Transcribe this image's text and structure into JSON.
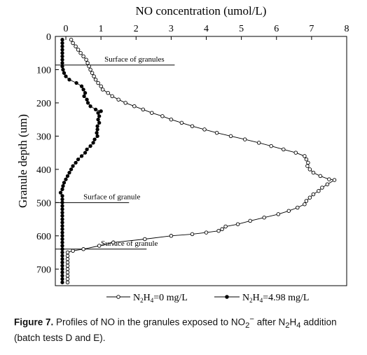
{
  "chart_data": {
    "type": "line",
    "title": "",
    "xlabel": "NO concentration (umol/L)",
    "ylabel": "Granule depth (um)",
    "x_axis_position": "top",
    "y_axis_inverted": true,
    "xlim": [
      -0.3,
      8.0
    ],
    "ylim": [
      0,
      750
    ],
    "x_ticks": [
      0,
      1,
      2,
      3,
      4,
      5,
      6,
      7,
      8
    ],
    "y_ticks": [
      0,
      100,
      200,
      300,
      400,
      500,
      600,
      700
    ],
    "grid": false,
    "legend_position": "bottom",
    "legend": {
      "item1": {
        "main": "N",
        "s1": "2",
        "mid": "H",
        "s2": "4",
        "rest": "=0 mg/L"
      },
      "item2": {
        "main": "N",
        "s1": "2",
        "mid": "H",
        "s2": "4",
        "rest": "=4.98 mg/L"
      }
    },
    "annotations": [
      {
        "text": "Surface of granules",
        "depth": 86,
        "x_start": -0.3,
        "x_end": 3.1,
        "text_x": 1.1
      },
      {
        "text": "Surface of granule",
        "depth": 500,
        "x_start": -0.3,
        "x_end": 1.8,
        "text_x": 0.5
      },
      {
        "text": "Surface of granule",
        "depth": 640,
        "x_start": -0.3,
        "x_end": 2.3,
        "text_x": 1.0
      }
    ],
    "series": [
      {
        "marker": "open-circle",
        "points": [
          [
            0.15,
            10
          ],
          [
            0.2,
            20
          ],
          [
            0.28,
            30
          ],
          [
            0.35,
            40
          ],
          [
            0.42,
            50
          ],
          [
            0.5,
            60
          ],
          [
            0.58,
            70
          ],
          [
            0.62,
            80
          ],
          [
            0.66,
            90
          ],
          [
            0.7,
            100
          ],
          [
            0.75,
            110
          ],
          [
            0.8,
            120
          ],
          [
            0.85,
            130
          ],
          [
            0.92,
            140
          ],
          [
            1.0,
            150
          ],
          [
            1.05,
            160
          ],
          [
            1.2,
            170
          ],
          [
            1.32,
            180
          ],
          [
            1.5,
            190
          ],
          [
            1.7,
            200
          ],
          [
            1.95,
            210
          ],
          [
            2.2,
            220
          ],
          [
            2.45,
            230
          ],
          [
            2.75,
            240
          ],
          [
            3.0,
            250
          ],
          [
            3.3,
            260
          ],
          [
            3.6,
            270
          ],
          [
            3.95,
            280
          ],
          [
            4.3,
            290
          ],
          [
            4.7,
            300
          ],
          [
            5.1,
            310
          ],
          [
            5.5,
            320
          ],
          [
            5.85,
            330
          ],
          [
            6.2,
            340
          ],
          [
            6.55,
            350
          ],
          [
            6.8,
            360
          ],
          [
            6.85,
            370
          ],
          [
            6.9,
            380
          ],
          [
            6.88,
            390
          ],
          [
            6.95,
            400
          ],
          [
            7.05,
            410
          ],
          [
            7.25,
            420
          ],
          [
            7.5,
            430
          ],
          [
            7.65,
            432
          ],
          [
            7.45,
            445
          ],
          [
            7.3,
            455
          ],
          [
            7.2,
            465
          ],
          [
            7.05,
            475
          ],
          [
            6.95,
            485
          ],
          [
            6.85,
            495
          ],
          [
            6.8,
            505
          ],
          [
            6.6,
            515
          ],
          [
            6.35,
            525
          ],
          [
            6.05,
            535
          ],
          [
            5.65,
            545
          ],
          [
            5.25,
            555
          ],
          [
            4.9,
            565
          ],
          [
            4.55,
            572
          ],
          [
            4.45,
            580
          ],
          [
            4.35,
            585
          ],
          [
            4.0,
            590
          ],
          [
            3.6,
            595
          ],
          [
            3.0,
            600
          ],
          [
            2.25,
            610
          ],
          [
            1.35,
            620
          ],
          [
            0.95,
            630
          ],
          [
            0.5,
            640
          ],
          [
            0.2,
            645
          ],
          [
            0.05,
            650
          ],
          [
            0.05,
            660
          ],
          [
            0.05,
            670
          ],
          [
            0.05,
            680
          ],
          [
            0.05,
            690
          ],
          [
            0.05,
            700
          ],
          [
            0.05,
            710
          ],
          [
            0.05,
            720
          ],
          [
            0.05,
            730
          ],
          [
            0.05,
            740
          ]
        ]
      },
      {
        "marker": "filled-circle",
        "points": [
          [
            -0.1,
            10
          ],
          [
            -0.1,
            20
          ],
          [
            -0.1,
            30
          ],
          [
            -0.1,
            40
          ],
          [
            -0.1,
            50
          ],
          [
            -0.1,
            60
          ],
          [
            -0.1,
            70
          ],
          [
            -0.1,
            80
          ],
          [
            -0.1,
            90
          ],
          [
            -0.08,
            100
          ],
          [
            -0.05,
            110
          ],
          [
            0.0,
            120
          ],
          [
            0.1,
            130
          ],
          [
            0.3,
            140
          ],
          [
            0.45,
            150
          ],
          [
            0.5,
            160
          ],
          [
            0.55,
            170
          ],
          [
            0.52,
            180
          ],
          [
            0.6,
            190
          ],
          [
            0.63,
            200
          ],
          [
            0.7,
            210
          ],
          [
            0.85,
            220
          ],
          [
            1.0,
            225
          ],
          [
            0.92,
            230
          ],
          [
            0.95,
            240
          ],
          [
            0.92,
            250
          ],
          [
            0.95,
            260
          ],
          [
            0.9,
            270
          ],
          [
            0.9,
            280
          ],
          [
            0.88,
            290
          ],
          [
            0.9,
            300
          ],
          [
            0.82,
            310
          ],
          [
            0.78,
            320
          ],
          [
            0.7,
            330
          ],
          [
            0.6,
            340
          ],
          [
            0.55,
            350
          ],
          [
            0.45,
            360
          ],
          [
            0.35,
            370
          ],
          [
            0.28,
            380
          ],
          [
            0.2,
            390
          ],
          [
            0.15,
            400
          ],
          [
            0.1,
            410
          ],
          [
            0.05,
            420
          ],
          [
            0.0,
            430
          ],
          [
            -0.05,
            440
          ],
          [
            -0.08,
            450
          ],
          [
            -0.1,
            460
          ],
          [
            -0.15,
            470
          ],
          [
            -0.1,
            480
          ],
          [
            -0.1,
            490
          ],
          [
            -0.1,
            500
          ],
          [
            -0.1,
            510
          ],
          [
            -0.1,
            520
          ],
          [
            -0.1,
            530
          ],
          [
            -0.1,
            540
          ],
          [
            -0.1,
            550
          ],
          [
            -0.1,
            560
          ],
          [
            -0.1,
            570
          ],
          [
            -0.1,
            580
          ],
          [
            -0.1,
            590
          ],
          [
            -0.1,
            600
          ],
          [
            -0.1,
            610
          ],
          [
            -0.1,
            620
          ],
          [
            -0.1,
            630
          ],
          [
            -0.1,
            640
          ],
          [
            -0.1,
            650
          ],
          [
            -0.1,
            660
          ],
          [
            -0.1,
            670
          ],
          [
            -0.1,
            680
          ],
          [
            -0.1,
            690
          ],
          [
            -0.1,
            700
          ],
          [
            -0.1,
            710
          ],
          [
            -0.1,
            720
          ],
          [
            -0.1,
            730
          ],
          [
            -0.1,
            740
          ]
        ]
      }
    ]
  },
  "caption": {
    "label": "Figure 7.",
    "text_a": " Profiles of NO in the granules exposed to NO",
    "sub_a": "2",
    "sup_a": "−",
    "text_b": " after N",
    "sub_b": "2",
    "text_c": "H",
    "sub_c": "4",
    "text_d": " addition (batch tests D and E)."
  }
}
